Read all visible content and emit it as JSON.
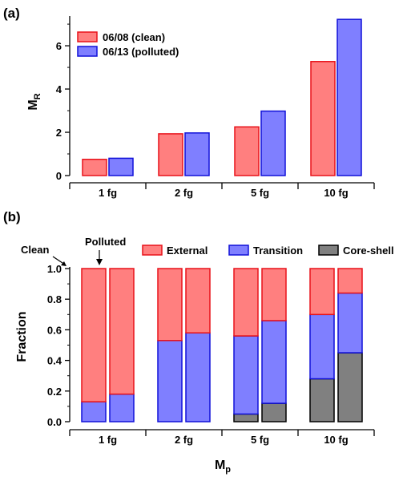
{
  "colors": {
    "clean_fill": "#ff7f7f",
    "clean_stroke": "#e8121a",
    "polluted_fill": "#7f7fff",
    "polluted_stroke": "#1010d8",
    "external_fill": "#ff7f7f",
    "external_stroke": "#e8121a",
    "transition_fill": "#7f7fff",
    "transition_stroke": "#1010d8",
    "coreshell_fill": "#808080",
    "coreshell_stroke": "#000000"
  },
  "chart_data": [
    {
      "panel_label": "(a)",
      "type": "bar",
      "categories": [
        "1 fg",
        "2 fg",
        "5 fg",
        "10 fg"
      ],
      "series": [
        {
          "name": "06/08 (clean)",
          "values": [
            0.75,
            1.93,
            2.25,
            5.27
          ]
        },
        {
          "name": "06/13 (polluted)",
          "values": [
            0.8,
            1.97,
            2.98,
            7.22
          ]
        }
      ],
      "ylabel_main": "M",
      "ylabel_sub": "R",
      "ylim": [
        0,
        7.3
      ],
      "yticks": [
        0,
        2,
        4,
        6
      ],
      "legend_position": "top-left"
    },
    {
      "panel_label": "(b)",
      "type": "bar",
      "stacked": true,
      "categories": [
        "1 fg",
        "2 fg",
        "5 fg",
        "10 fg"
      ],
      "bar_groups": [
        "Clean",
        "Polluted"
      ],
      "series": [
        {
          "name": "Core-shell",
          "values": {
            "Clean": [
              0.0,
              0.0,
              0.05,
              0.28
            ],
            "Polluted": [
              0.0,
              0.0,
              0.12,
              0.45
            ]
          }
        },
        {
          "name": "Transition",
          "values": {
            "Clean": [
              0.13,
              0.53,
              0.51,
              0.42
            ],
            "Polluted": [
              0.18,
              0.58,
              0.54,
              0.39
            ]
          }
        },
        {
          "name": "External",
          "values": {
            "Clean": [
              0.87,
              0.47,
              0.44,
              0.3
            ],
            "Polluted": [
              0.82,
              0.42,
              0.34,
              0.16
            ]
          }
        }
      ],
      "ylabel": "Fraction",
      "xlabel_main": "M",
      "xlabel_sub": "p",
      "ylim": [
        0,
        1.0
      ],
      "yticks": [
        "0.0",
        "0.2",
        "0.4",
        "0.6",
        "0.8",
        "1.0"
      ],
      "annotations": [
        "Clean",
        "Polluted"
      ],
      "legend_position": "top"
    }
  ]
}
